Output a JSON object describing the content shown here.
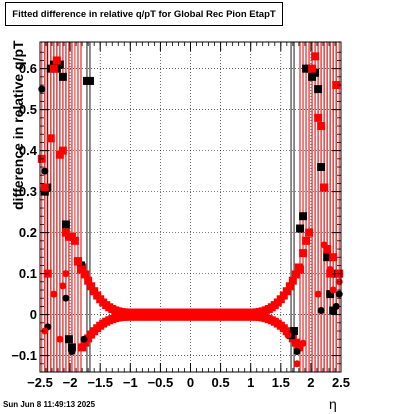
{
  "chart_data": {
    "type": "scatter",
    "title": "Fitted difference in relative q/pT for Global Rec Pion EtapT",
    "xlabel": "η",
    "ylabel": "difference in relative q/pT",
    "xlim": [
      -2.5,
      2.5
    ],
    "ylim": [
      -0.14,
      0.665
    ],
    "xticks": [
      -2.5,
      -2,
      -1.5,
      -1,
      -0.5,
      0,
      0.5,
      1,
      1.5,
      2,
      2.5
    ],
    "xtick_labels": [
      "−2.5",
      "−2",
      "−1.5",
      "−1",
      "−0.5",
      "0",
      "0.5",
      "1",
      "1.5",
      "2",
      "2.5"
    ],
    "yticks": [
      -0.1,
      0,
      0.1,
      0.2,
      0.3,
      0.4,
      0.5,
      0.6
    ],
    "ytick_labels": [
      "−0.1",
      "0",
      "0.1",
      "0.2",
      "0.3",
      "0.4",
      "0.5",
      "0.6"
    ],
    "grid": true,
    "timestamp": "Sun Jun  8 11:49:13 2025",
    "colors": {
      "black_series": "#000000",
      "red_series": "#ff0000"
    },
    "black_squares": [
      [
        -2.42,
        0.3
      ],
      [
        -2.38,
        0.31
      ],
      [
        -2.32,
        0.6
      ],
      [
        -2.27,
        0.61
      ],
      [
        -2.22,
        0.6
      ],
      [
        -2.17,
        0.61
      ],
      [
        -2.12,
        0.58
      ],
      [
        -2.07,
        0.22
      ],
      [
        -2.02,
        -0.06
      ],
      [
        -1.97,
        -0.08
      ],
      [
        -1.87,
        0.13
      ],
      [
        -1.82,
        0.12
      ],
      [
        -1.72,
        0.57
      ],
      [
        -1.67,
        0.57
      ],
      [
        1.67,
        -0.05
      ],
      [
        1.72,
        -0.04
      ],
      [
        1.82,
        0.21
      ],
      [
        1.87,
        0.24
      ],
      [
        1.92,
        0.6
      ],
      [
        1.97,
        0.6
      ],
      [
        2.02,
        0.58
      ],
      [
        2.07,
        0.59
      ],
      [
        2.12,
        0.55
      ],
      [
        2.17,
        0.36
      ],
      [
        2.22,
        0.31
      ],
      [
        2.27,
        0.14
      ],
      [
        2.32,
        0.05
      ],
      [
        2.37,
        0.01
      ],
      [
        2.42,
        0.1
      ]
    ],
    "black_circles": [
      [
        -2.47,
        0.55
      ],
      [
        -2.42,
        0.35
      ],
      [
        -2.37,
        -0.03
      ],
      [
        -2.07,
        0.04
      ],
      [
        -1.97,
        -0.09
      ],
      [
        -1.77,
        -0.06
      ],
      [
        1.77,
        -0.09
      ],
      [
        2.17,
        0.01
      ],
      [
        2.42,
        0.02
      ],
      [
        2.47,
        0.05
      ]
    ],
    "red_squares": [
      [
        -2.47,
        0.38
      ],
      [
        -2.42,
        0.31
      ],
      [
        -2.37,
        0.1
      ],
      [
        -2.32,
        0.43
      ],
      [
        -2.27,
        0.6
      ],
      [
        -2.22,
        0.62
      ],
      [
        -2.17,
        0.39
      ],
      [
        -2.12,
        0.4
      ],
      [
        -2.07,
        0.2
      ],
      [
        -2.02,
        0.19
      ],
      [
        -1.97,
        0.19
      ],
      [
        -1.92,
        0.18
      ],
      [
        -1.87,
        0.13
      ],
      [
        -1.82,
        0.11
      ],
      [
        1.82,
        0.11
      ],
      [
        1.87,
        0.15
      ],
      [
        1.92,
        0.18
      ],
      [
        1.97,
        0.2
      ],
      [
        2.02,
        0.6
      ],
      [
        2.07,
        0.63
      ],
      [
        2.12,
        0.48
      ],
      [
        2.17,
        0.46
      ],
      [
        2.22,
        0.31
      ],
      [
        2.27,
        0.16
      ],
      [
        2.32,
        0.1
      ],
      [
        2.37,
        0.14
      ],
      [
        2.42,
        0.56
      ],
      [
        2.47,
        0.1
      ]
    ],
    "red_circles": [
      [
        -2.42,
        -0.04
      ],
      [
        -2.27,
        0.05
      ],
      [
        -2.17,
        -0.06
      ],
      [
        -2.12,
        0.07
      ],
      [
        -2.07,
        0.1
      ],
      [
        1.62,
        -0.05
      ],
      [
        1.77,
        -0.12
      ],
      [
        1.87,
        -0.07
      ],
      [
        2.12,
        0.05
      ],
      [
        2.22,
        0.17
      ],
      [
        2.32,
        0.11
      ],
      [
        2.37,
        0.06
      ],
      [
        2.47,
        0.08
      ]
    ]
  }
}
